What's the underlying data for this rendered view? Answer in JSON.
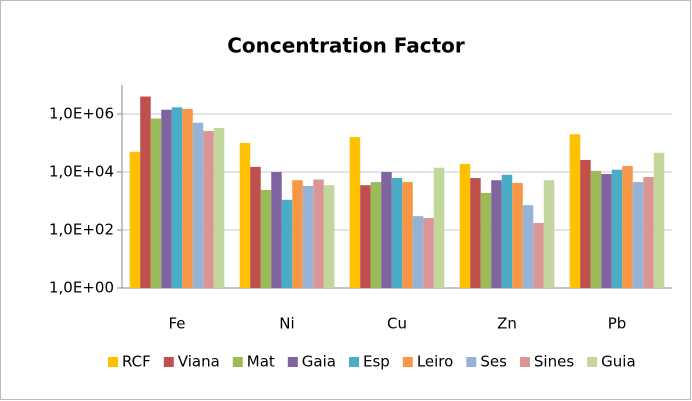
{
  "chart_data": {
    "type": "bar",
    "title": "Concentration Factor",
    "categories": [
      "Fe",
      "Ni",
      "Cu",
      "Zn",
      "Pb"
    ],
    "series": [
      {
        "name": "RCF",
        "color": "#FFC000",
        "values": [
          50000,
          100000,
          160000,
          19000,
          200000
        ]
      },
      {
        "name": "Viana",
        "color": "#C0504D",
        "values": [
          4000000,
          15000,
          3500,
          6200,
          26000
        ]
      },
      {
        "name": "Mat",
        "color": "#9BBB59",
        "values": [
          700000,
          2400,
          4500,
          1900,
          11000
        ]
      },
      {
        "name": "Gaia",
        "color": "#8064A2",
        "values": [
          1400000,
          10000,
          10000,
          5200,
          8500
        ]
      },
      {
        "name": "Esp",
        "color": "#4BACC6",
        "values": [
          1700000,
          1100,
          6200,
          8000,
          12000
        ]
      },
      {
        "name": "Leiro",
        "color": "#F79646",
        "values": [
          1500000,
          5200,
          4500,
          4200,
          16000
        ]
      },
      {
        "name": "Ses",
        "color": "#95B3D7",
        "values": [
          500000,
          3300,
          300,
          720,
          4500
        ]
      },
      {
        "name": "Sines",
        "color": "#D99694",
        "values": [
          260000,
          5500,
          260,
          175,
          6700
        ]
      },
      {
        "name": "Guia",
        "color": "#C3D69B",
        "values": [
          330000,
          3500,
          14000,
          5200,
          46000
        ]
      }
    ],
    "ylim": [
      1,
      10000000
    ],
    "yticks": [
      {
        "value": 1,
        "label": "1,0E+00"
      },
      {
        "value": 100,
        "label": "1,0E+02"
      },
      {
        "value": 10000,
        "label": "1,0E+04"
      },
      {
        "value": 1000000,
        "label": "1,0E+06"
      }
    ],
    "log_scale": true,
    "grid": true,
    "legend_position": "bottom"
  }
}
